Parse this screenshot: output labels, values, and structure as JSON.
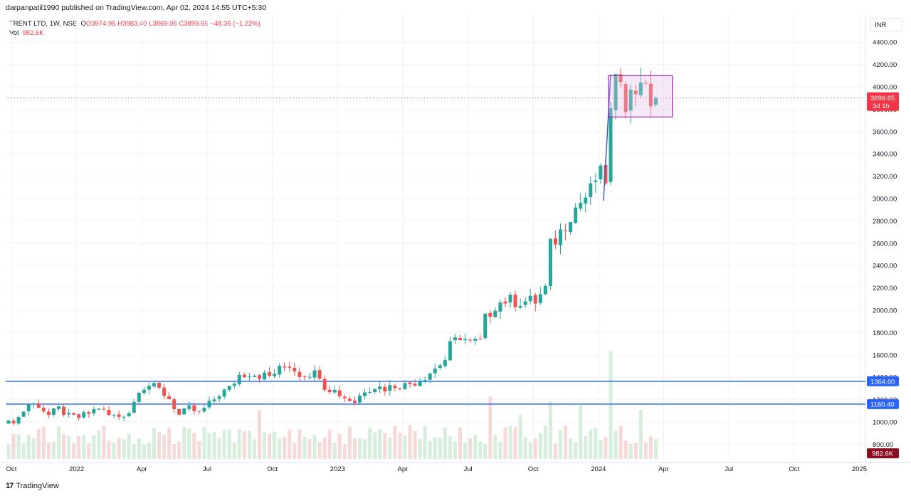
{
  "header": {
    "published_by": "darpanpatil1990 published on TradingView.com, Apr 02, 2024 14:55 UTC+5:30"
  },
  "legend": {
    "symbol": "TRENT LTD, 1W, NSE",
    "open": "O3974.95",
    "high": "H3983.40",
    "low": "L3869.05",
    "close": "C3899.65",
    "change": "−48.35 (−1.22%)",
    "vol_label": "Vol",
    "vol_value": "982.6K"
  },
  "currency": "INR",
  "footer": {
    "brand": "TradingView",
    "glyph": "17"
  },
  "colors": {
    "up": "#26a69a",
    "down": "#ef5350",
    "level_line": "#2962ff",
    "box_stroke": "#9c27b0",
    "box_fill": "#e1bee7",
    "vol_up": "#d8eedd",
    "vol_down": "#f6dada",
    "current_tag": "#f23645",
    "vol_tag": "#880e1f"
  },
  "chart_data": {
    "type": "candlestick",
    "symbol": "TRENT LTD",
    "interval": "1W",
    "exchange": "NSE",
    "ylim": [
      700,
      4500
    ],
    "y_ticks": [
      "4400.00",
      "4200.00",
      "4000.00",
      "3800.00",
      "3600.00",
      "3400.00",
      "3200.00",
      "3000.00",
      "2800.00",
      "2600.00",
      "2400.00",
      "2200.00",
      "2000.00",
      "1800.00",
      "1600.00",
      "1400.00",
      "1200.00",
      "1000.00",
      "800.00"
    ],
    "x_tick_labels": [
      "Oct",
      "2022",
      "Apr",
      "Jul",
      "Oct",
      "2023",
      "Apr",
      "Jul",
      "Oct",
      "2024",
      "Apr",
      "Jul",
      "Oct",
      "2025"
    ],
    "horizontal_levels": [
      {
        "label": "1364.60",
        "value": 1364.6
      },
      {
        "label": "1160.40",
        "value": 1160.4
      }
    ],
    "current_price": {
      "label": "3899.65",
      "sublabel": "3d 1h",
      "value": 3899.65
    },
    "volume_label": "982.6K",
    "trend_line": {
      "from": {
        "week": 119,
        "price": 2980
      },
      "to": {
        "week": 121,
        "price": 4110
      }
    },
    "consolidation_box": {
      "week_start": 121,
      "week_end": 132,
      "price_low": 3730,
      "price_high": 4100
    },
    "ohlc_keypoints": [
      [
        0,
        990
      ],
      [
        2,
        1040
      ],
      [
        4,
        1160
      ],
      [
        6,
        1150
      ],
      [
        8,
        1060
      ],
      [
        10,
        1120
      ],
      [
        12,
        1050
      ],
      [
        14,
        1040
      ],
      [
        16,
        1080
      ],
      [
        18,
        1130
      ],
      [
        20,
        1060
      ],
      [
        22,
        1050
      ],
      [
        24,
        1090
      ],
      [
        25,
        1180
      ],
      [
        26,
        1300
      ],
      [
        28,
        1330
      ],
      [
        30,
        1290
      ],
      [
        32,
        1210
      ],
      [
        34,
        1060
      ],
      [
        36,
        1120
      ],
      [
        38,
        1080
      ],
      [
        40,
        1160
      ],
      [
        42,
        1250
      ],
      [
        44,
        1300
      ],
      [
        46,
        1420
      ],
      [
        48,
        1440
      ],
      [
        50,
        1420
      ],
      [
        52,
        1410
      ],
      [
        54,
        1470
      ],
      [
        56,
        1510
      ],
      [
        58,
        1430
      ],
      [
        60,
        1440
      ],
      [
        62,
        1430
      ],
      [
        63,
        1320
      ],
      [
        65,
        1280
      ],
      [
        67,
        1220
      ],
      [
        69,
        1180
      ],
      [
        71,
        1290
      ],
      [
        73,
        1320
      ],
      [
        75,
        1300
      ],
      [
        77,
        1330
      ],
      [
        79,
        1330
      ],
      [
        81,
        1360
      ],
      [
        83,
        1410
      ],
      [
        85,
        1480
      ],
      [
        87,
        1560
      ],
      [
        88,
        1680
      ],
      [
        90,
        1770
      ],
      [
        92,
        1710
      ],
      [
        94,
        1720
      ],
      [
        95,
        1920
      ],
      [
        97,
        2050
      ],
      [
        99,
        2090
      ],
      [
        101,
        2080
      ],
      [
        103,
        2080
      ],
      [
        105,
        2080
      ],
      [
        107,
        2190
      ],
      [
        108,
        2570
      ],
      [
        110,
        2700
      ],
      [
        112,
        2870
      ],
      [
        114,
        2970
      ],
      [
        116,
        3060
      ],
      [
        117,
        3180
      ],
      [
        118,
        3200
      ],
      [
        119,
        3180
      ],
      [
        120,
        3750
      ],
      [
        121,
        4000
      ],
      [
        122,
        4140
      ],
      [
        123,
        3890
      ],
      [
        124,
        3920
      ],
      [
        125,
        3980
      ],
      [
        126,
        4110
      ],
      [
        127,
        3930
      ],
      [
        128,
        3880
      ],
      [
        129,
        3900
      ]
    ]
  }
}
